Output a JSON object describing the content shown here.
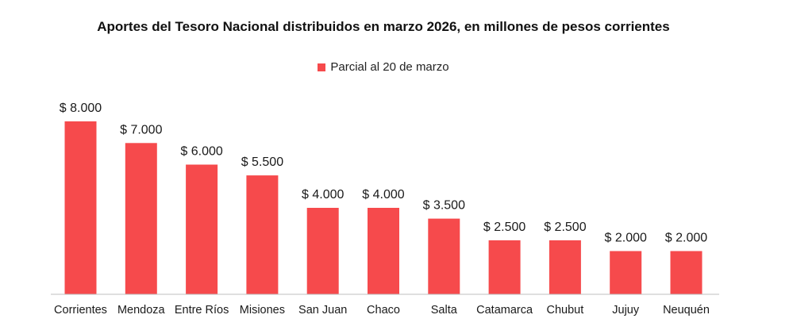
{
  "chart_data": {
    "type": "bar",
    "title": "Aportes del Tesoro Nacional distribuidos en marzo 2026, en millones de pesos corrientes",
    "legend": {
      "label": "Parcial al 20 de marzo",
      "placement": "top-center"
    },
    "categories": [
      "Corrientes",
      "Mendoza",
      "Entre Ríos",
      "Misiones",
      "San Juan",
      "Chaco",
      "Salta",
      "Catamarca",
      "Chubut",
      "Jujuy",
      "Neuquén"
    ],
    "series": [
      {
        "name": "Parcial al 20 de marzo",
        "values": [
          8000,
          7000,
          6000,
          5500,
          4000,
          4000,
          3500,
          2500,
          2500,
          2000,
          2000
        ],
        "labels": [
          "$ 8.000",
          "$ 7.000",
          "$ 6.000",
          "$ 5.500",
          "$ 4.000",
          "$ 4.000",
          "$ 3.500",
          "$ 2.500",
          "$ 2.500",
          "$ 2.000",
          "$ 2.000"
        ]
      }
    ],
    "xlabel": "",
    "ylabel": "",
    "ylim": [
      0,
      8000
    ],
    "grid": false,
    "bar_color": "#f64a4c",
    "axis_color": "#bfbfbf"
  }
}
